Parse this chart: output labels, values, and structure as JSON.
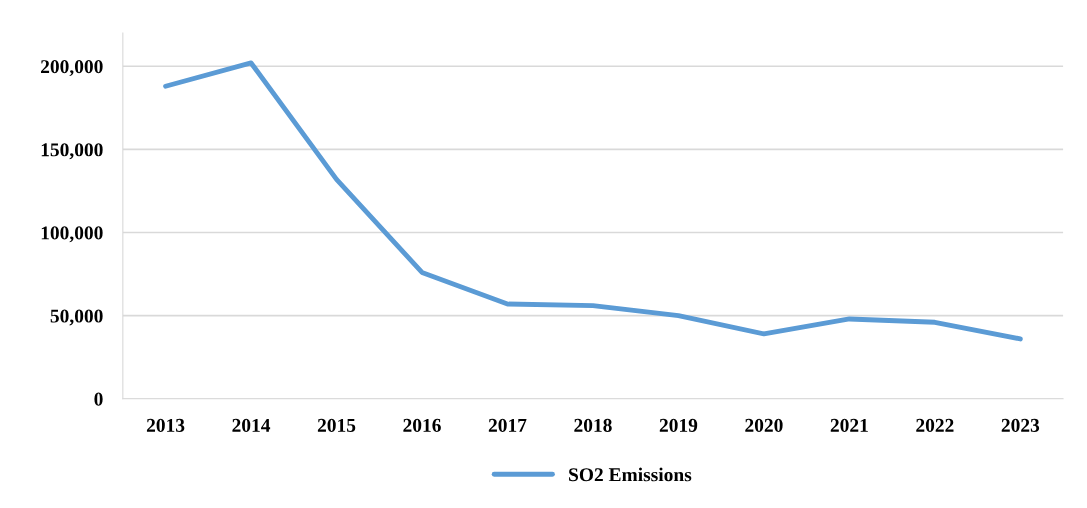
{
  "chart_data": {
    "type": "line",
    "categories": [
      "2013",
      "2014",
      "2015",
      "2016",
      "2017",
      "2018",
      "2019",
      "2020",
      "2021",
      "2022",
      "2023"
    ],
    "series": [
      {
        "name": "SO2 Emissions",
        "color": "#5b9bd5",
        "values": [
          188000,
          202000,
          132000,
          76000,
          57000,
          56000,
          50000,
          39000,
          48000,
          46000,
          36000
        ]
      }
    ],
    "ylim": [
      0,
      220000
    ],
    "yticks": [
      {
        "value": 0,
        "label": "0"
      },
      {
        "value": 50000,
        "label": "50,000"
      },
      {
        "value": 100000,
        "label": "100,000"
      },
      {
        "value": 150000,
        "label": "150,000"
      },
      {
        "value": 200000,
        "label": "200,000"
      }
    ],
    "grid": "y",
    "legend": "bottom",
    "marker": "none",
    "line_style": "solid"
  }
}
